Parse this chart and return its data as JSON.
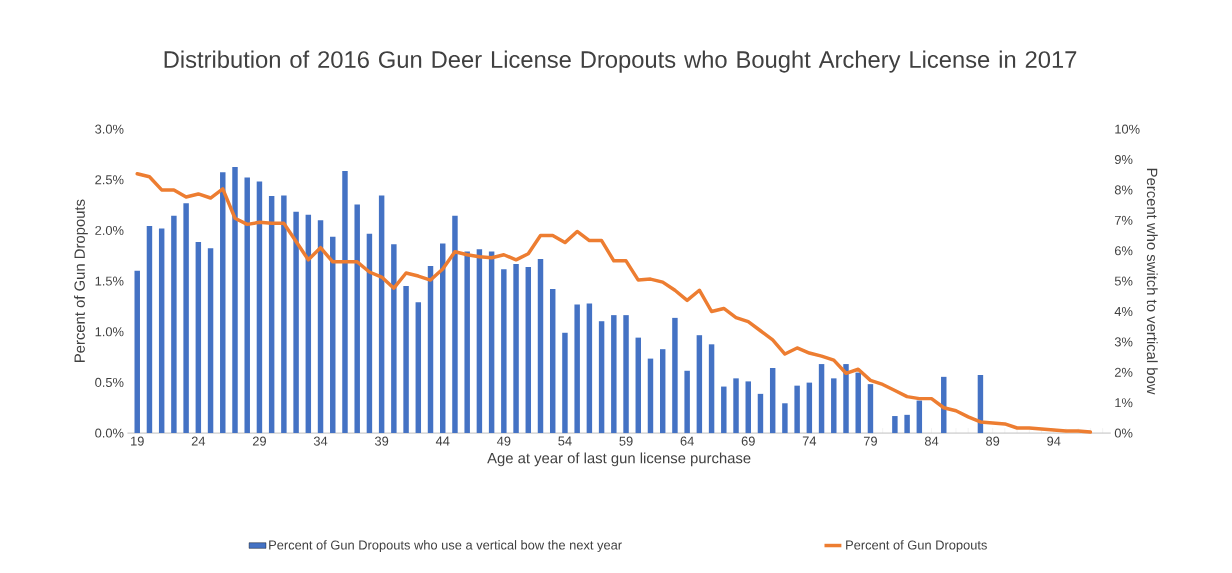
{
  "chart_data": {
    "type": "bar",
    "title": "Distribution of 2016 Gun Deer License Dropouts who Bought Archery License in 2017",
    "xlabel": "Age at year of last gun license purchase",
    "ylabel": "Percent of Gun Dropouts",
    "y2label": "Percent who switch to vertical bow",
    "categories": [
      "19",
      null,
      null,
      null,
      null,
      "24",
      null,
      null,
      null,
      null,
      "29",
      null,
      null,
      null,
      null,
      "34",
      null,
      null,
      null,
      null,
      "39",
      null,
      null,
      null,
      null,
      "44",
      null,
      null,
      null,
      null,
      "49",
      null,
      null,
      null,
      null,
      "54",
      null,
      null,
      null,
      null,
      "59",
      null,
      null,
      null,
      null,
      "64",
      null,
      null,
      null,
      null,
      "69",
      null,
      null,
      null,
      null,
      "74",
      null,
      null,
      null,
      null,
      "79",
      null,
      null,
      null,
      null,
      "84",
      null,
      null,
      null,
      null,
      "89",
      null,
      null,
      null,
      null,
      "94",
      null,
      null,
      null,
      null
    ],
    "series": [
      {
        "name": "Percent of Gun Dropouts who use a vertical bow the next year",
        "axis": "y2",
        "color": "#4472c4",
        "values": [
          5.34,
          6.81,
          6.73,
          7.15,
          7.56,
          6.29,
          6.08,
          8.58,
          8.75,
          8.41,
          8.28,
          7.8,
          7.82,
          7.28,
          7.18,
          7.0,
          6.46,
          8.62,
          7.52,
          6.56,
          7.82,
          6.21,
          4.84,
          4.3,
          5.5,
          6.24,
          7.15,
          5.97,
          6.05,
          5.97,
          5.39,
          5.56,
          5.46,
          5.73,
          4.74,
          3.3,
          4.23,
          4.26,
          3.68,
          3.88,
          3.88,
          3.14,
          2.45,
          2.76,
          3.79,
          2.05,
          3.22,
          2.92,
          1.53,
          1.8,
          1.7,
          1.29,
          2.14,
          0.98,
          1.56,
          1.66,
          2.27,
          1.8,
          2.27,
          1.99,
          1.61,
          null,
          0.56,
          0.6,
          1.07,
          null,
          1.85,
          null,
          null,
          1.91,
          null,
          null,
          null,
          null,
          null,
          null,
          null,
          null,
          null,
          null
        ]
      },
      {
        "name": "Percent of Gun Dropouts",
        "type": "line",
        "color": "#ed7d31",
        "values": [
          2.56,
          2.53,
          2.4,
          2.4,
          2.33,
          2.36,
          2.32,
          2.41,
          2.12,
          2.06,
          2.08,
          2.07,
          2.07,
          1.89,
          1.71,
          1.83,
          1.69,
          1.69,
          1.69,
          1.59,
          1.54,
          1.43,
          1.58,
          1.55,
          1.51,
          1.62,
          1.79,
          1.76,
          1.74,
          1.73,
          1.76,
          1.71,
          1.77,
          1.95,
          1.95,
          1.88,
          1.99,
          1.9,
          1.9,
          1.7,
          1.7,
          1.51,
          1.52,
          1.49,
          1.41,
          1.31,
          1.41,
          1.2,
          1.23,
          1.14,
          1.1,
          1.01,
          0.92,
          0.78,
          0.84,
          0.79,
          0.76,
          0.72,
          0.59,
          0.63,
          0.52,
          0.48,
          0.42,
          0.36,
          0.34,
          0.34,
          0.25,
          0.22,
          0.16,
          0.11,
          0.1,
          0.09,
          0.05,
          0.05,
          0.04,
          0.03,
          0.02,
          0.02,
          0.01,
          null
        ]
      }
    ],
    "ylim": [
      0,
      3
    ],
    "yticks": [
      {
        "value": 0,
        "label": "0.0%"
      },
      {
        "value": 0.5,
        "label": "0.5%"
      },
      {
        "value": 1,
        "label": "1.0%"
      },
      {
        "value": 1.5,
        "label": "1.5%"
      },
      {
        "value": 2,
        "label": "2.0%"
      },
      {
        "value": 2.5,
        "label": "2.5%"
      },
      {
        "value": 3,
        "label": "3.0%"
      }
    ],
    "y2lim": [
      0,
      10
    ],
    "y2ticks": [
      {
        "value": 0,
        "label": "0%"
      },
      {
        "value": 1,
        "label": "1%"
      },
      {
        "value": 2,
        "label": "2%"
      },
      {
        "value": 3,
        "label": "3%"
      },
      {
        "value": 4,
        "label": "4%"
      },
      {
        "value": 5,
        "label": "5%"
      },
      {
        "value": 6,
        "label": "6%"
      },
      {
        "value": 7,
        "label": "7%"
      },
      {
        "value": 8,
        "label": "8%"
      },
      {
        "value": 9,
        "label": "9%"
      },
      {
        "value": 10,
        "label": "10%"
      }
    ],
    "legend": "bottom"
  }
}
